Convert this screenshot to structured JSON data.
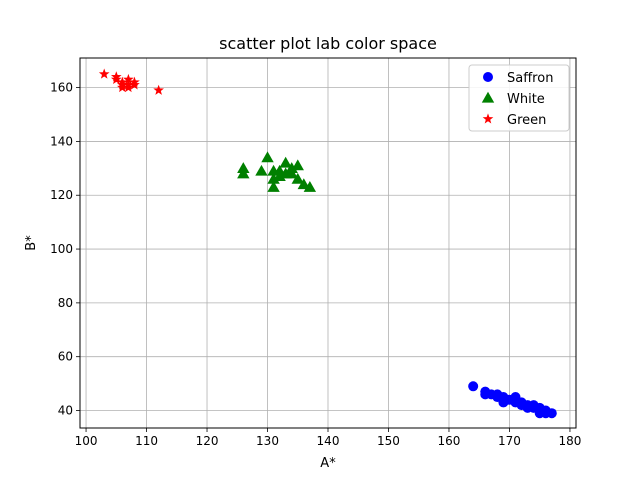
{
  "chart_data": {
    "type": "scatter",
    "title": "scatter plot lab color space",
    "xlabel": "A*",
    "ylabel": "B*",
    "xlim": [
      99,
      181
    ],
    "ylim": [
      33.5,
      171
    ],
    "xticks": [
      100,
      110,
      120,
      130,
      140,
      150,
      160,
      170,
      180
    ],
    "yticks": [
      40,
      60,
      80,
      100,
      120,
      140,
      160
    ],
    "grid": true,
    "legend_position": "top-right",
    "series": [
      {
        "name": "Saffron",
        "color": "#0000ff",
        "marker": "circle",
        "points": [
          [
            164,
            49
          ],
          [
            166,
            47
          ],
          [
            166,
            46
          ],
          [
            167,
            46
          ],
          [
            168,
            46
          ],
          [
            168,
            45
          ],
          [
            169,
            45
          ],
          [
            169,
            43
          ],
          [
            170,
            44
          ],
          [
            171,
            45
          ],
          [
            171,
            43
          ],
          [
            172,
            42
          ],
          [
            172,
            43
          ],
          [
            173,
            42
          ],
          [
            173,
            41
          ],
          [
            174,
            42
          ],
          [
            174,
            41
          ],
          [
            175,
            41
          ],
          [
            175,
            40
          ],
          [
            175,
            39
          ],
          [
            176,
            40
          ],
          [
            176,
            39
          ],
          [
            177,
            39
          ]
        ]
      },
      {
        "name": "White",
        "color": "#008000",
        "marker": "triangle",
        "points": [
          [
            126,
            130
          ],
          [
            126,
            128
          ],
          [
            129,
            129
          ],
          [
            130,
            134
          ],
          [
            131,
            129
          ],
          [
            131,
            126
          ],
          [
            131,
            123
          ],
          [
            132,
            129
          ],
          [
            132,
            127
          ],
          [
            133,
            132
          ],
          [
            133,
            128
          ],
          [
            134,
            130
          ],
          [
            134,
            128
          ],
          [
            135,
            131
          ],
          [
            135,
            126
          ],
          [
            136,
            124
          ],
          [
            137,
            123
          ]
        ]
      },
      {
        "name": "Green",
        "color": "#ff0000",
        "marker": "star",
        "points": [
          [
            103,
            165
          ],
          [
            105,
            164
          ],
          [
            105,
            163
          ],
          [
            106,
            162
          ],
          [
            106,
            161
          ],
          [
            106,
            160
          ],
          [
            107,
            163
          ],
          [
            107,
            161
          ],
          [
            107,
            160
          ],
          [
            108,
            162
          ],
          [
            108,
            161
          ],
          [
            112,
            159
          ]
        ]
      }
    ]
  }
}
